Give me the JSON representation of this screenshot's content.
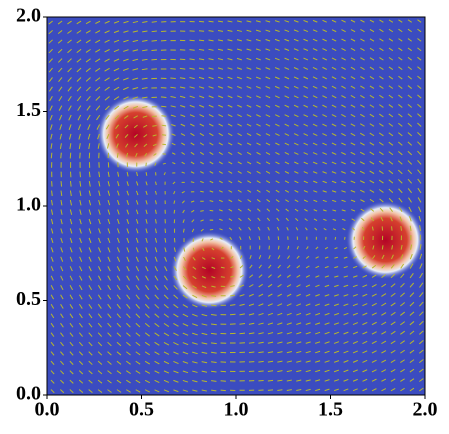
{
  "chart_data": {
    "type": "quiver",
    "xlim": [
      0,
      2
    ],
    "ylim": [
      0,
      2
    ],
    "xticks": [
      {
        "value": 0,
        "label": "0.0"
      },
      {
        "value": 0.5,
        "label": "0.5"
      },
      {
        "value": 1,
        "label": "1.0"
      },
      {
        "value": 1.5,
        "label": "1.5"
      },
      {
        "value": 2,
        "label": "2.0"
      }
    ],
    "yticks": [
      {
        "value": 0,
        "label": "0.0"
      },
      {
        "value": 0.5,
        "label": "0.5"
      },
      {
        "value": 1,
        "label": "1.0"
      },
      {
        "value": 1.5,
        "label": "1.5"
      },
      {
        "value": 2,
        "label": "2.0"
      }
    ],
    "background_color": "#3b4cc0",
    "arrow_color": "#b8b82a",
    "blob_color": "#b40426",
    "vortices": {
      "x": [
        0.47,
        0.86,
        1.79
      ],
      "y": [
        1.38,
        0.66,
        0.82
      ],
      "radius": [
        0.13,
        0.13,
        0.13
      ]
    },
    "quiver": {
      "nx": 40,
      "ny": 40
    }
  }
}
